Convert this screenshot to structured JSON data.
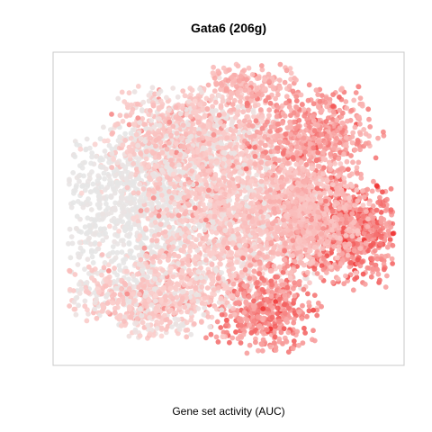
{
  "chart_data": {
    "type": "scatter",
    "title": "Gata6 (206g)",
    "subtitle": "",
    "xlabel": "Gene set activity (AUC)",
    "ylabel": "",
    "axes_visible": false,
    "grid": false,
    "legend": "none",
    "xlim": [
      0,
      100
    ],
    "ylim": [
      0,
      100
    ],
    "colors": {
      "low": "#e6e6e6",
      "mid": "#fbd5d3",
      "high": "#f03232",
      "frame": "#c8c8c8"
    },
    "point_sets": [
      {
        "region": "left-grey-core",
        "x": [
          2,
          40
        ],
        "y": [
          25,
          75
        ],
        "n": 900,
        "intensity": [
          0.0,
          0.08
        ],
        "grey_bias": 1.0
      },
      {
        "region": "top-left-pale",
        "x": [
          18,
          62
        ],
        "y": [
          60,
          90
        ],
        "n": 1050,
        "intensity": [
          0.05,
          0.18
        ],
        "grey_bias": 0.35
      },
      {
        "region": "center-pale",
        "x": [
          28,
          72
        ],
        "y": [
          22,
          70
        ],
        "n": 1600,
        "intensity": [
          0.04,
          0.2
        ],
        "grey_bias": 0.25
      },
      {
        "region": "top-center-pink",
        "x": [
          45,
          65
        ],
        "y": [
          85,
          99
        ],
        "n": 150,
        "intensity": [
          0.12,
          0.35
        ],
        "grey_bias": 0.0
      },
      {
        "region": "upper-right-cluster",
        "x": [
          60,
          90
        ],
        "y": [
          62,
          88
        ],
        "n": 550,
        "intensity": [
          0.18,
          0.6
        ],
        "grey_bias": 0.0
      },
      {
        "region": "right-hotspot",
        "x": [
          74,
          99
        ],
        "y": [
          28,
          57
        ],
        "n": 600,
        "intensity": [
          0.3,
          0.85
        ],
        "grey_bias": 0.0
      },
      {
        "region": "bottom-center-cluster",
        "x": [
          48,
          72
        ],
        "y": [
          3,
          28
        ],
        "n": 420,
        "intensity": [
          0.25,
          0.75
        ],
        "grey_bias": 0.0
      },
      {
        "region": "lower-left-pale",
        "x": [
          5,
          45
        ],
        "y": [
          8,
          30
        ],
        "n": 650,
        "intensity": [
          0.04,
          0.16
        ],
        "grey_bias": 0.3
      },
      {
        "region": "mid-right-pale",
        "x": [
          60,
          86
        ],
        "y": [
          32,
          62
        ],
        "n": 700,
        "intensity": [
          0.08,
          0.28
        ],
        "grey_bias": 0.0
      }
    ]
  }
}
